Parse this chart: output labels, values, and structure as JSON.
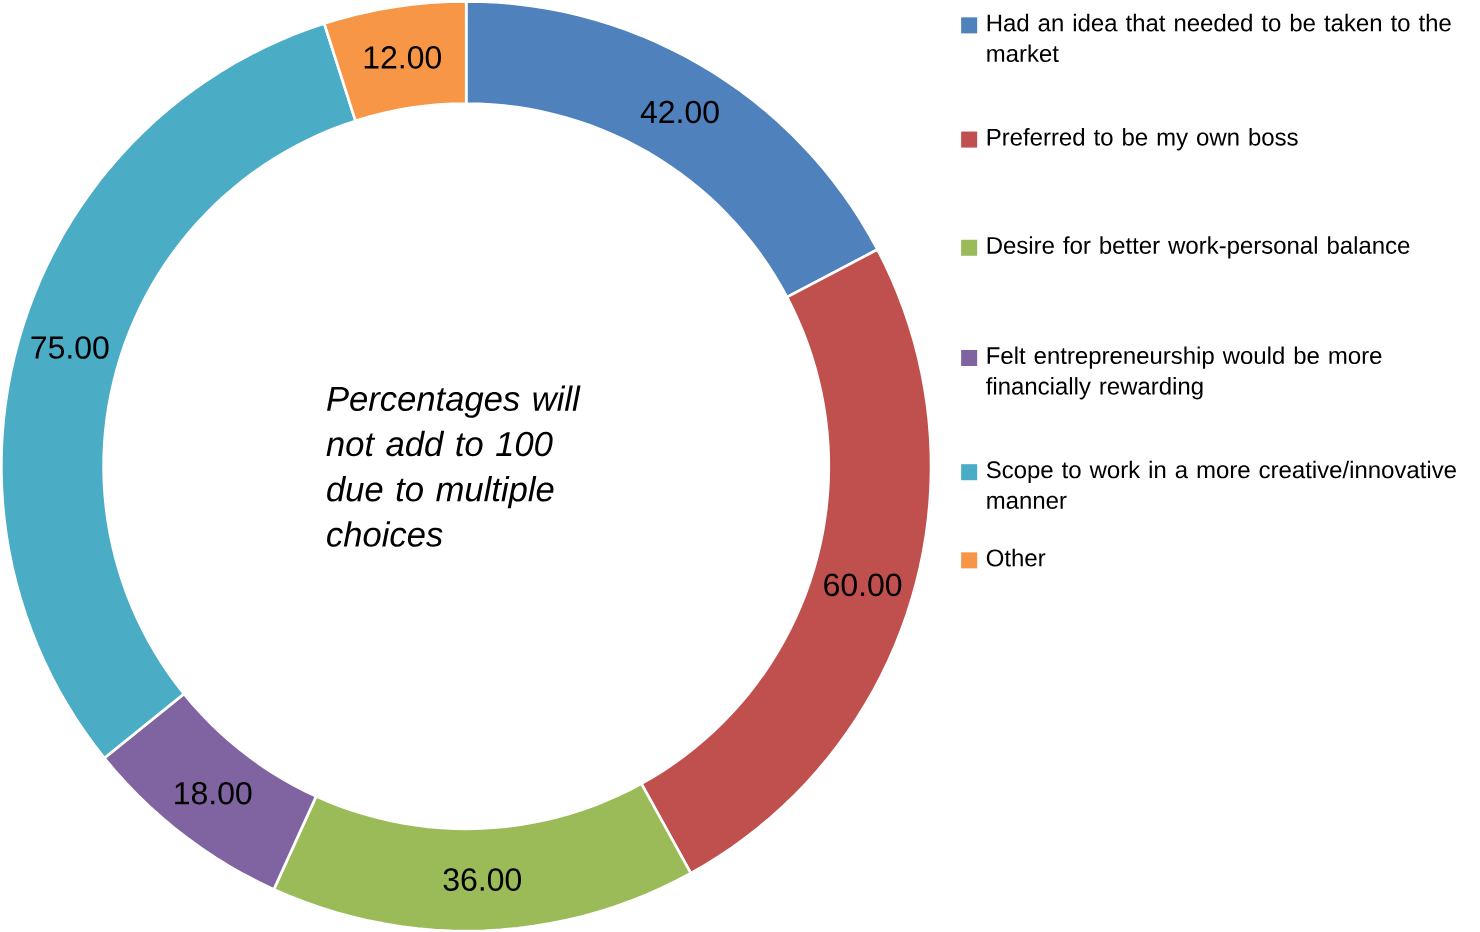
{
  "chart_data": {
    "type": "donut",
    "categories": [
      "Had an idea that needed to be taken to the market",
      "Preferred to be my own boss",
      "Desire for better work-personal balance",
      "Felt entrepreneurship would be more financially rewarding",
      "Scope to work in a more creative/innovative manner",
      "Other"
    ],
    "values": [
      42,
      60,
      36,
      18,
      75,
      12
    ],
    "value_labels": [
      "42.00",
      "60.00",
      "36.00",
      "18.00",
      "75.00",
      "12.00"
    ],
    "colors": [
      "#4f81bd",
      "#c0504d",
      "#9bbb59",
      "#8064a2",
      "#4bacc6",
      "#f79646"
    ],
    "legend": "right",
    "annotations": [
      "*Percentages will not add to 100 due to multiple choices*"
    ]
  }
}
